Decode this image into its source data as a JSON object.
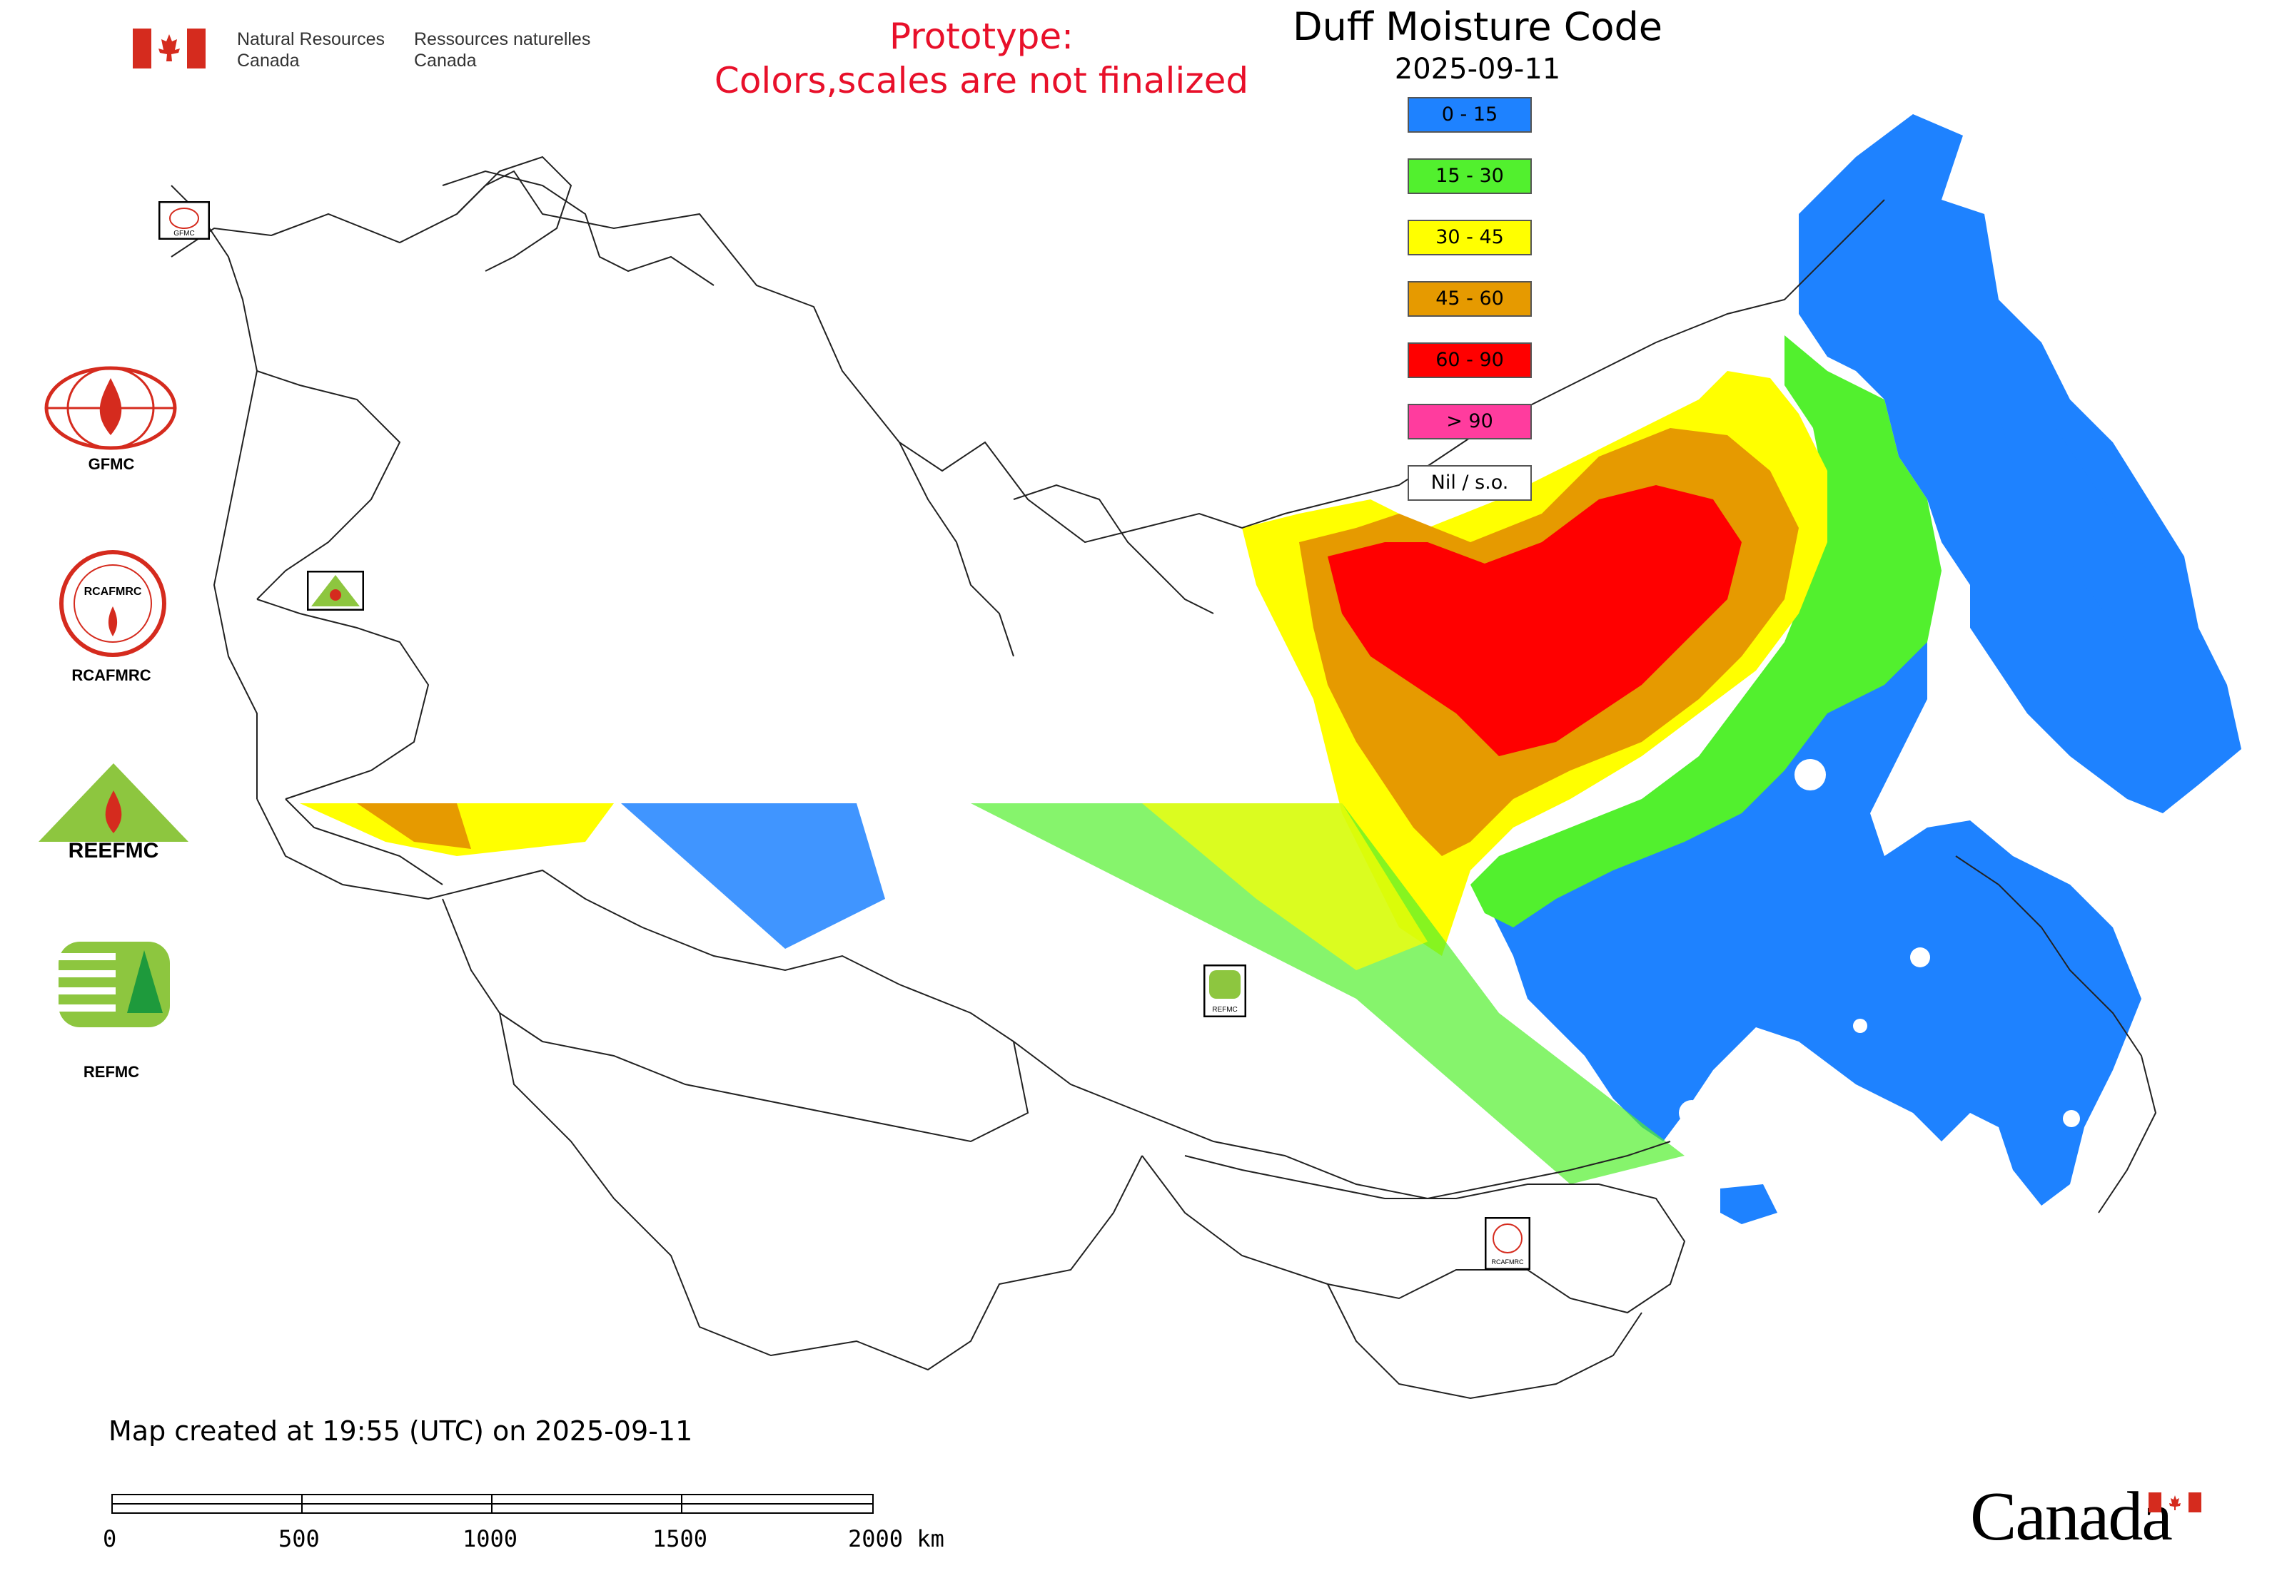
{
  "header": {
    "dept_en_line1": "Natural Resources",
    "dept_en_line2": "Canada",
    "dept_fr_line1": "Ressources naturelles",
    "dept_fr_line2": "Canada",
    "prototype_line1": "Prototype:",
    "prototype_line2": "Colors,scales are not finalized"
  },
  "map": {
    "title": "Duff Moisture Code",
    "date": "2025-09-11"
  },
  "legend": {
    "items": [
      {
        "label": "0 - 15",
        "color": "#1e82ff"
      },
      {
        "label": "15 - 30",
        "color": "#52f02e"
      },
      {
        "label": "30 - 45",
        "color": "#ffff00"
      },
      {
        "label": "45 - 60",
        "color": "#e69a00"
      },
      {
        "label": "60 - 90",
        "color": "#ff0000"
      },
      {
        "label": "> 90",
        "color": "#ff3c9e"
      },
      {
        "label": "Nil / s.o.",
        "color": "#ffffff"
      }
    ]
  },
  "side_logos": {
    "gfmc": "GFMC",
    "rcafmrc": "RCAFMRC",
    "reefmc": "REEFMC",
    "refmc": "REFMC",
    "rcafmrc_ring_text": "RCAFMRC",
    "reefmc_text": "REEFMC",
    "gfmc_small": "GFMC",
    "refmc_small": "REFMC",
    "rcafmrc_small": "RCAFMRC"
  },
  "footer": {
    "created_text": "Map created at 19:55 (UTC) on 2025-09-11",
    "scale_ticks": [
      "0",
      "500",
      "1000",
      "1500",
      "2000 km"
    ],
    "wordmark": "Canada"
  },
  "colors": {
    "prototype_text": "#e8102a",
    "flag_red": "#d52b1e",
    "boundary": "#222222"
  }
}
